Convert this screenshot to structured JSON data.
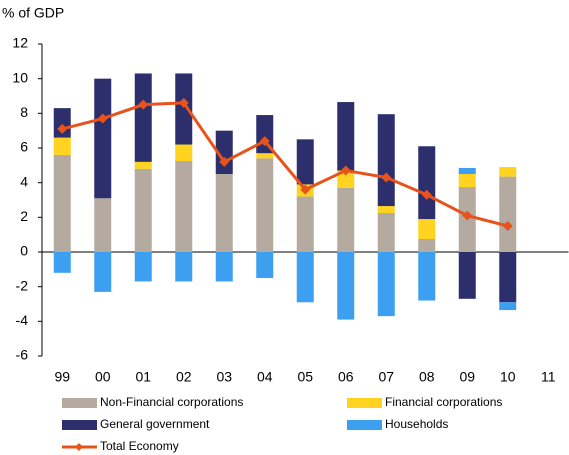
{
  "chart_data": {
    "type": "bar",
    "stacked": true,
    "title": "% of GDP",
    "categories": [
      "99",
      "00",
      "01",
      "02",
      "03",
      "04",
      "05",
      "06",
      "07",
      "08",
      "09",
      "10",
      "11"
    ],
    "series": [
      {
        "name": "Non-Financial corporations",
        "color": "#b5aaa0",
        "values": [
          5.6,
          3.1,
          4.8,
          5.25,
          4.5,
          5.4,
          3.2,
          3.7,
          2.25,
          0.75,
          3.75,
          4.35,
          null
        ]
      },
      {
        "name": "Financial corporations",
        "color": "#ffd320",
        "values": [
          1.0,
          0,
          0.4,
          0.95,
          0,
          0.3,
          0.7,
          1.0,
          0.4,
          1.15,
          0.75,
          0.55,
          null
        ]
      },
      {
        "name": "General government",
        "color": "#2c2f6c",
        "values": [
          1.7,
          6.9,
          5.1,
          4.1,
          2.5,
          2.2,
          2.6,
          3.95,
          5.3,
          4.2,
          -2.7,
          -2.9,
          null
        ]
      },
      {
        "name": "Households",
        "color": "#3d9ff0",
        "values": [
          -1.2,
          -2.3,
          -1.7,
          -1.7,
          -1.7,
          -1.5,
          -2.9,
          -3.9,
          -3.7,
          -2.8,
          0.35,
          -0.45,
          null
        ]
      },
      {
        "name": "Total Economy",
        "color": "#e8521b",
        "type": "line",
        "values": [
          7.1,
          7.7,
          8.5,
          8.6,
          5.2,
          6.4,
          3.6,
          4.7,
          4.3,
          3.3,
          2.1,
          1.5,
          null
        ]
      }
    ],
    "ylim": [
      -6,
      12
    ],
    "yticks": [
      -6,
      -4,
      -2,
      0,
      2,
      4,
      6,
      8,
      10,
      12
    ],
    "grid": false
  }
}
